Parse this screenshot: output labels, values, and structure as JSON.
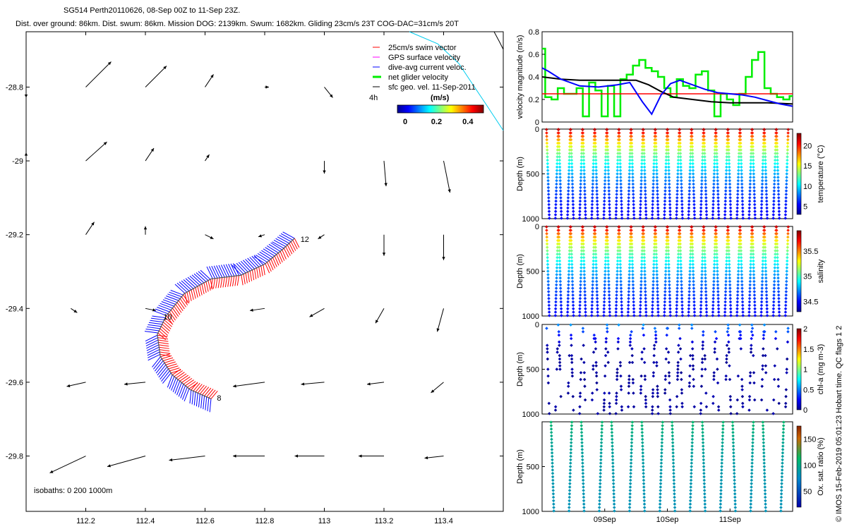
{
  "header": {
    "title": "SG514 Perth20110626, 08-Sep 00Z to 11-Sep 23Z.",
    "stats": "Dist. over ground: 86km. Dist. swum: 86km. Mission DOG: 2139km. Swum: 1682km. Gliding 23cm/s 23T COG-DAC=31cm/s 20T"
  },
  "stamp": "© IMOS 15-Feb-2019 05:01:23 Hobart time. QC flags 1  2",
  "colors": {
    "swim": "#ff0000",
    "gps": "#ff00ff",
    "dac": "#0000ff",
    "net": "#00ee00",
    "geo": "#000000",
    "coast": "#00ccee",
    "model": "#000000"
  },
  "chart_data": [
    {
      "type": "scatter",
      "name": "map",
      "xlim": [
        112.0,
        113.6
      ],
      "ylim": [
        -29.95,
        -28.65
      ],
      "xticks": [
        "112.2",
        "112.4",
        "112.6",
        "112.8",
        "113",
        "113.2",
        "113.4"
      ],
      "xtick_values": [
        112.2,
        112.4,
        112.6,
        112.8,
        113.0,
        113.2,
        113.4
      ],
      "yticks": [
        "-28.8",
        "-29",
        "-29.2",
        "-29.4",
        "-29.6",
        "-29.8"
      ],
      "ytick_values": [
        -28.8,
        -29.0,
        -29.2,
        -29.4,
        -29.6,
        -29.8
      ],
      "legend": {
        "placement": "top-right",
        "items": [
          "25cm/s swim vector",
          "GPS surface velocity",
          "dive-avg current veloc.",
          "net glider velocity",
          "sfc geo. vel. 11-Sep-2011"
        ],
        "scale_label": "4h",
        "colorbar_title": "(m/s)",
        "colorbar_ticks": [
          "0",
          "0.2",
          "0.4"
        ],
        "colorbar_tick_values": [
          0,
          0.2,
          0.4
        ],
        "colorbar_range": [
          -0.05,
          0.5
        ]
      },
      "isobaths_label": "isobaths: 0   200  1000m",
      "day_labels": [
        {
          "text": "12",
          "lon": 112.92,
          "lat": -29.22
        },
        {
          "text": "10",
          "lon": 112.46,
          "lat": -29.43
        },
        {
          "text": "8",
          "lon": 112.64,
          "lat": -29.65
        }
      ],
      "track": [
        {
          "lon": 112.9,
          "lat": -29.21
        },
        {
          "lon": 112.86,
          "lat": -29.24
        },
        {
          "lon": 112.8,
          "lat": -29.28
        },
        {
          "lon": 112.72,
          "lat": -29.31
        },
        {
          "lon": 112.62,
          "lat": -29.32
        },
        {
          "lon": 112.53,
          "lat": -29.36
        },
        {
          "lon": 112.47,
          "lat": -29.42
        },
        {
          "lon": 112.44,
          "lat": -29.47
        },
        {
          "lon": 112.45,
          "lat": -29.53
        },
        {
          "lon": 112.49,
          "lat": -29.58
        },
        {
          "lon": 112.55,
          "lat": -29.62
        },
        {
          "lon": 112.62,
          "lat": -29.645
        }
      ],
      "geo_vectors": [
        {
          "lon": 112.0,
          "lat": -28.8,
          "u": 0.0,
          "v": -0.05
        },
        {
          "lon": 112.2,
          "lat": -28.8,
          "u": 0.12,
          "v": 0.12
        },
        {
          "lon": 112.4,
          "lat": -28.8,
          "u": 0.1,
          "v": 0.1
        },
        {
          "lon": 112.6,
          "lat": -28.8,
          "u": 0.04,
          "v": 0.06
        },
        {
          "lon": 112.8,
          "lat": -28.8,
          "u": 0.02,
          "v": 0.0
        },
        {
          "lon": 113.0,
          "lat": -28.8,
          "u": 0.04,
          "v": -0.05
        },
        {
          "lon": 112.0,
          "lat": -29.0,
          "u": 0.0,
          "v": 0.04
        },
        {
          "lon": 112.2,
          "lat": -29.0,
          "u": 0.1,
          "v": 0.09
        },
        {
          "lon": 112.4,
          "lat": -29.0,
          "u": 0.04,
          "v": 0.06
        },
        {
          "lon": 112.6,
          "lat": -29.0,
          "u": 0.02,
          "v": 0.03
        },
        {
          "lon": 113.0,
          "lat": -29.0,
          "u": 0.0,
          "v": -0.06
        },
        {
          "lon": 113.2,
          "lat": -29.0,
          "u": 0.01,
          "v": -0.12
        },
        {
          "lon": 113.4,
          "lat": -29.0,
          "u": 0.03,
          "v": -0.15
        },
        {
          "lon": 112.2,
          "lat": -29.2,
          "u": 0.04,
          "v": 0.06
        },
        {
          "lon": 112.4,
          "lat": -29.2,
          "u": 0.0,
          "v": 0.04
        },
        {
          "lon": 112.6,
          "lat": -29.2,
          "u": 0.04,
          "v": -0.02
        },
        {
          "lon": 112.8,
          "lat": -29.2,
          "u": -0.03,
          "v": -0.01
        },
        {
          "lon": 113.0,
          "lat": -29.2,
          "u": -0.03,
          "v": -0.02
        },
        {
          "lon": 113.2,
          "lat": -29.2,
          "u": 0.0,
          "v": -0.1
        },
        {
          "lon": 113.4,
          "lat": -29.2,
          "u": 0.0,
          "v": -0.12
        },
        {
          "lon": 112.15,
          "lat": -29.4,
          "u": 0.03,
          "v": -0.02
        },
        {
          "lon": 112.4,
          "lat": -29.4,
          "u": 0.05,
          "v": -0.01
        },
        {
          "lon": 112.8,
          "lat": -29.4,
          "u": -0.07,
          "v": -0.01
        },
        {
          "lon": 113.0,
          "lat": -29.4,
          "u": -0.07,
          "v": -0.04
        },
        {
          "lon": 113.2,
          "lat": -29.4,
          "u": -0.04,
          "v": -0.07
        },
        {
          "lon": 113.4,
          "lat": -29.4,
          "u": -0.03,
          "v": -0.11
        },
        {
          "lon": 112.2,
          "lat": -29.6,
          "u": -0.09,
          "v": -0.02
        },
        {
          "lon": 112.4,
          "lat": -29.6,
          "u": -0.1,
          "v": -0.01
        },
        {
          "lon": 112.8,
          "lat": -29.6,
          "u": -0.15,
          "v": -0.02
        },
        {
          "lon": 113.0,
          "lat": -29.6,
          "u": -0.11,
          "v": -0.01
        },
        {
          "lon": 113.2,
          "lat": -29.6,
          "u": -0.08,
          "v": -0.01
        },
        {
          "lon": 113.4,
          "lat": -29.6,
          "u": -0.06,
          "v": -0.05
        },
        {
          "lon": 112.2,
          "lat": -29.8,
          "u": -0.17,
          "v": -0.08
        },
        {
          "lon": 112.4,
          "lat": -29.8,
          "u": -0.18,
          "v": -0.05
        },
        {
          "lon": 112.6,
          "lat": -29.8,
          "u": -0.17,
          "v": -0.02
        },
        {
          "lon": 112.8,
          "lat": -29.8,
          "u": -0.15,
          "v": 0.0
        },
        {
          "lon": 113.0,
          "lat": -29.8,
          "u": -0.14,
          "v": 0.0
        },
        {
          "lon": 113.2,
          "lat": -29.8,
          "u": -0.12,
          "v": 0.0
        },
        {
          "lon": 113.4,
          "lat": -29.8,
          "u": -0.09,
          "v": -0.01
        }
      ]
    },
    {
      "type": "line",
      "name": "velocity",
      "ylabel": "velocity magnitude (m/s)",
      "ylim": [
        0,
        0.8
      ],
      "yticks": [
        "0",
        "0.2",
        "0.4",
        "0.6",
        "0.8"
      ],
      "ytick_values": [
        0,
        0.2,
        0.4,
        0.6,
        0.8
      ],
      "xlim": [
        0,
        4
      ],
      "swim_speed": 0.25,
      "dac": {
        "x": [
          0,
          0.1,
          0.3,
          0.6,
          0.9,
          1.2,
          1.4,
          1.6,
          1.75,
          1.9,
          2.05,
          2.2,
          2.4,
          2.6,
          2.8,
          3.0,
          3.2,
          3.4,
          3.6,
          3.8,
          4.0
        ],
        "y": [
          0.48,
          0.45,
          0.38,
          0.32,
          0.31,
          0.33,
          0.35,
          0.18,
          0.07,
          0.24,
          0.34,
          0.37,
          0.33,
          0.29,
          0.26,
          0.25,
          0.24,
          0.22,
          0.19,
          0.16,
          0.14
        ]
      },
      "model": {
        "x": [
          0,
          0.3,
          0.6,
          0.9,
          1.2,
          1.5,
          1.7,
          1.9,
          2.1,
          2.4,
          2.7,
          3.0,
          3.3,
          3.6,
          4.0
        ],
        "y": [
          0.4,
          0.38,
          0.37,
          0.37,
          0.37,
          0.37,
          0.33,
          0.27,
          0.22,
          0.2,
          0.18,
          0.17,
          0.17,
          0.17,
          0.16
        ]
      },
      "net": {
        "x": [
          0,
          0.05,
          0.15,
          0.25,
          0.35,
          0.45,
          0.55,
          0.65,
          0.75,
          0.85,
          0.95,
          1.05,
          1.15,
          1.25,
          1.35,
          1.45,
          1.55,
          1.65,
          1.75,
          1.85,
          1.95,
          2.05,
          2.15,
          2.25,
          2.35,
          2.45,
          2.55,
          2.65,
          2.75,
          2.85,
          2.95,
          3.05,
          3.15,
          3.25,
          3.35,
          3.45,
          3.55,
          3.65,
          3.75,
          3.85,
          3.95,
          4.0
        ],
        "y": [
          0.65,
          0.22,
          0.2,
          0.3,
          0.25,
          0.25,
          0.3,
          0.05,
          0.35,
          0.28,
          0.05,
          0.32,
          0.05,
          0.38,
          0.42,
          0.5,
          0.55,
          0.48,
          0.45,
          0.4,
          0.3,
          0.22,
          0.38,
          0.32,
          0.3,
          0.42,
          0.45,
          0.28,
          0.05,
          0.25,
          0.2,
          0.15,
          0.25,
          0.4,
          0.55,
          0.62,
          0.3,
          0.25,
          0.22,
          0.2,
          0.23,
          0.23
        ]
      }
    },
    {
      "type": "scatter",
      "name": "temperature",
      "ylabel": "Depth (m)",
      "ylim": [
        1000,
        0
      ],
      "yticks": [
        "0",
        "500",
        "1000"
      ],
      "ytick_values": [
        0,
        500,
        1000
      ],
      "colorbar_label": "temperature (°C)",
      "colorbar_ticks": [
        "5",
        "10",
        "15",
        "20"
      ],
      "colorbar_tick_values": [
        5,
        10,
        15,
        20
      ],
      "colorbar_range": [
        3,
        23
      ],
      "surface_value": 22,
      "deep_value": 4,
      "max_depth": 1000,
      "dives": 40
    },
    {
      "type": "scatter",
      "name": "salinity",
      "ylabel": "Depth (m)",
      "ylim": [
        1000,
        0
      ],
      "yticks": [
        "0",
        "500",
        "1000"
      ],
      "ytick_values": [
        0,
        500,
        1000
      ],
      "colorbar_label": "salinity",
      "colorbar_ticks": [
        "34.5",
        "35",
        "35.5"
      ],
      "colorbar_tick_values": [
        34.5,
        35.0,
        35.5
      ],
      "colorbar_range": [
        34.3,
        35.9
      ],
      "surface_value": 35.8,
      "deep_value": 34.4,
      "max_depth": 1000,
      "dives": 40
    },
    {
      "type": "scatter",
      "name": "chlorophyll",
      "ylabel": "Depth (m)",
      "ylim": [
        1000,
        0
      ],
      "yticks": [
        "0",
        "500",
        "1000"
      ],
      "ytick_values": [
        0,
        500,
        1000
      ],
      "colorbar_label": "chl-a (mg m-3)",
      "colorbar_ticks": [
        "0",
        "0.5",
        "1",
        "1.5",
        "2"
      ],
      "colorbar_tick_values": [
        0,
        0.5,
        1.0,
        1.5,
        2.0
      ],
      "colorbar_range": [
        0,
        2
      ],
      "surface_value": 0.5,
      "deep_value": 0.0,
      "max_depth": 1000,
      "dives": 40
    },
    {
      "type": "scatter",
      "name": "oxygen",
      "ylabel": "Depth (m)",
      "ylim": [
        1000,
        0
      ],
      "yticks": [
        "500",
        "1000"
      ],
      "ytick_values": [
        500,
        1000
      ],
      "xticks": [
        "09Sep",
        "10Sep",
        "11Sep"
      ],
      "xtick_values": [
        1,
        2,
        3
      ],
      "xlim": [
        0,
        4
      ],
      "colorbar_label": "Ox. sat. ratio (%)",
      "colorbar_ticks": [
        "50",
        "100",
        "150"
      ],
      "colorbar_tick_values": [
        50,
        100,
        150
      ],
      "colorbar_range": [
        20,
        175
      ],
      "surface_value": 110,
      "deep_value": 80,
      "max_depth": 1000,
      "dives": 16
    }
  ]
}
